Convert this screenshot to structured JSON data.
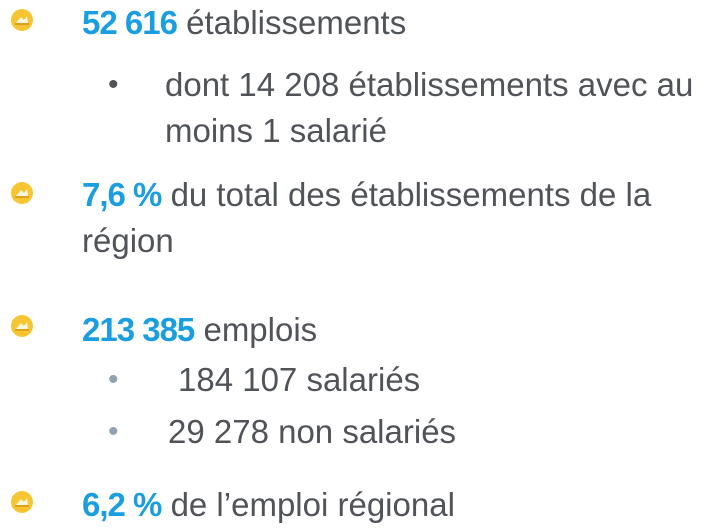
{
  "items": [
    {
      "value": "52 616",
      "text": "établissements",
      "sub": [
        "dont 14 208 établissements avec au moins 1 salarié"
      ]
    },
    {
      "value": "7,6 %",
      "text": "du total des établissements de la région"
    },
    {
      "value": "213 385",
      "text": "emplois",
      "sub": [
        "184 107 salariés",
        "29 278 non salariés"
      ]
    },
    {
      "value": "6,2 %",
      "text": "de l’emploi régional"
    }
  ]
}
